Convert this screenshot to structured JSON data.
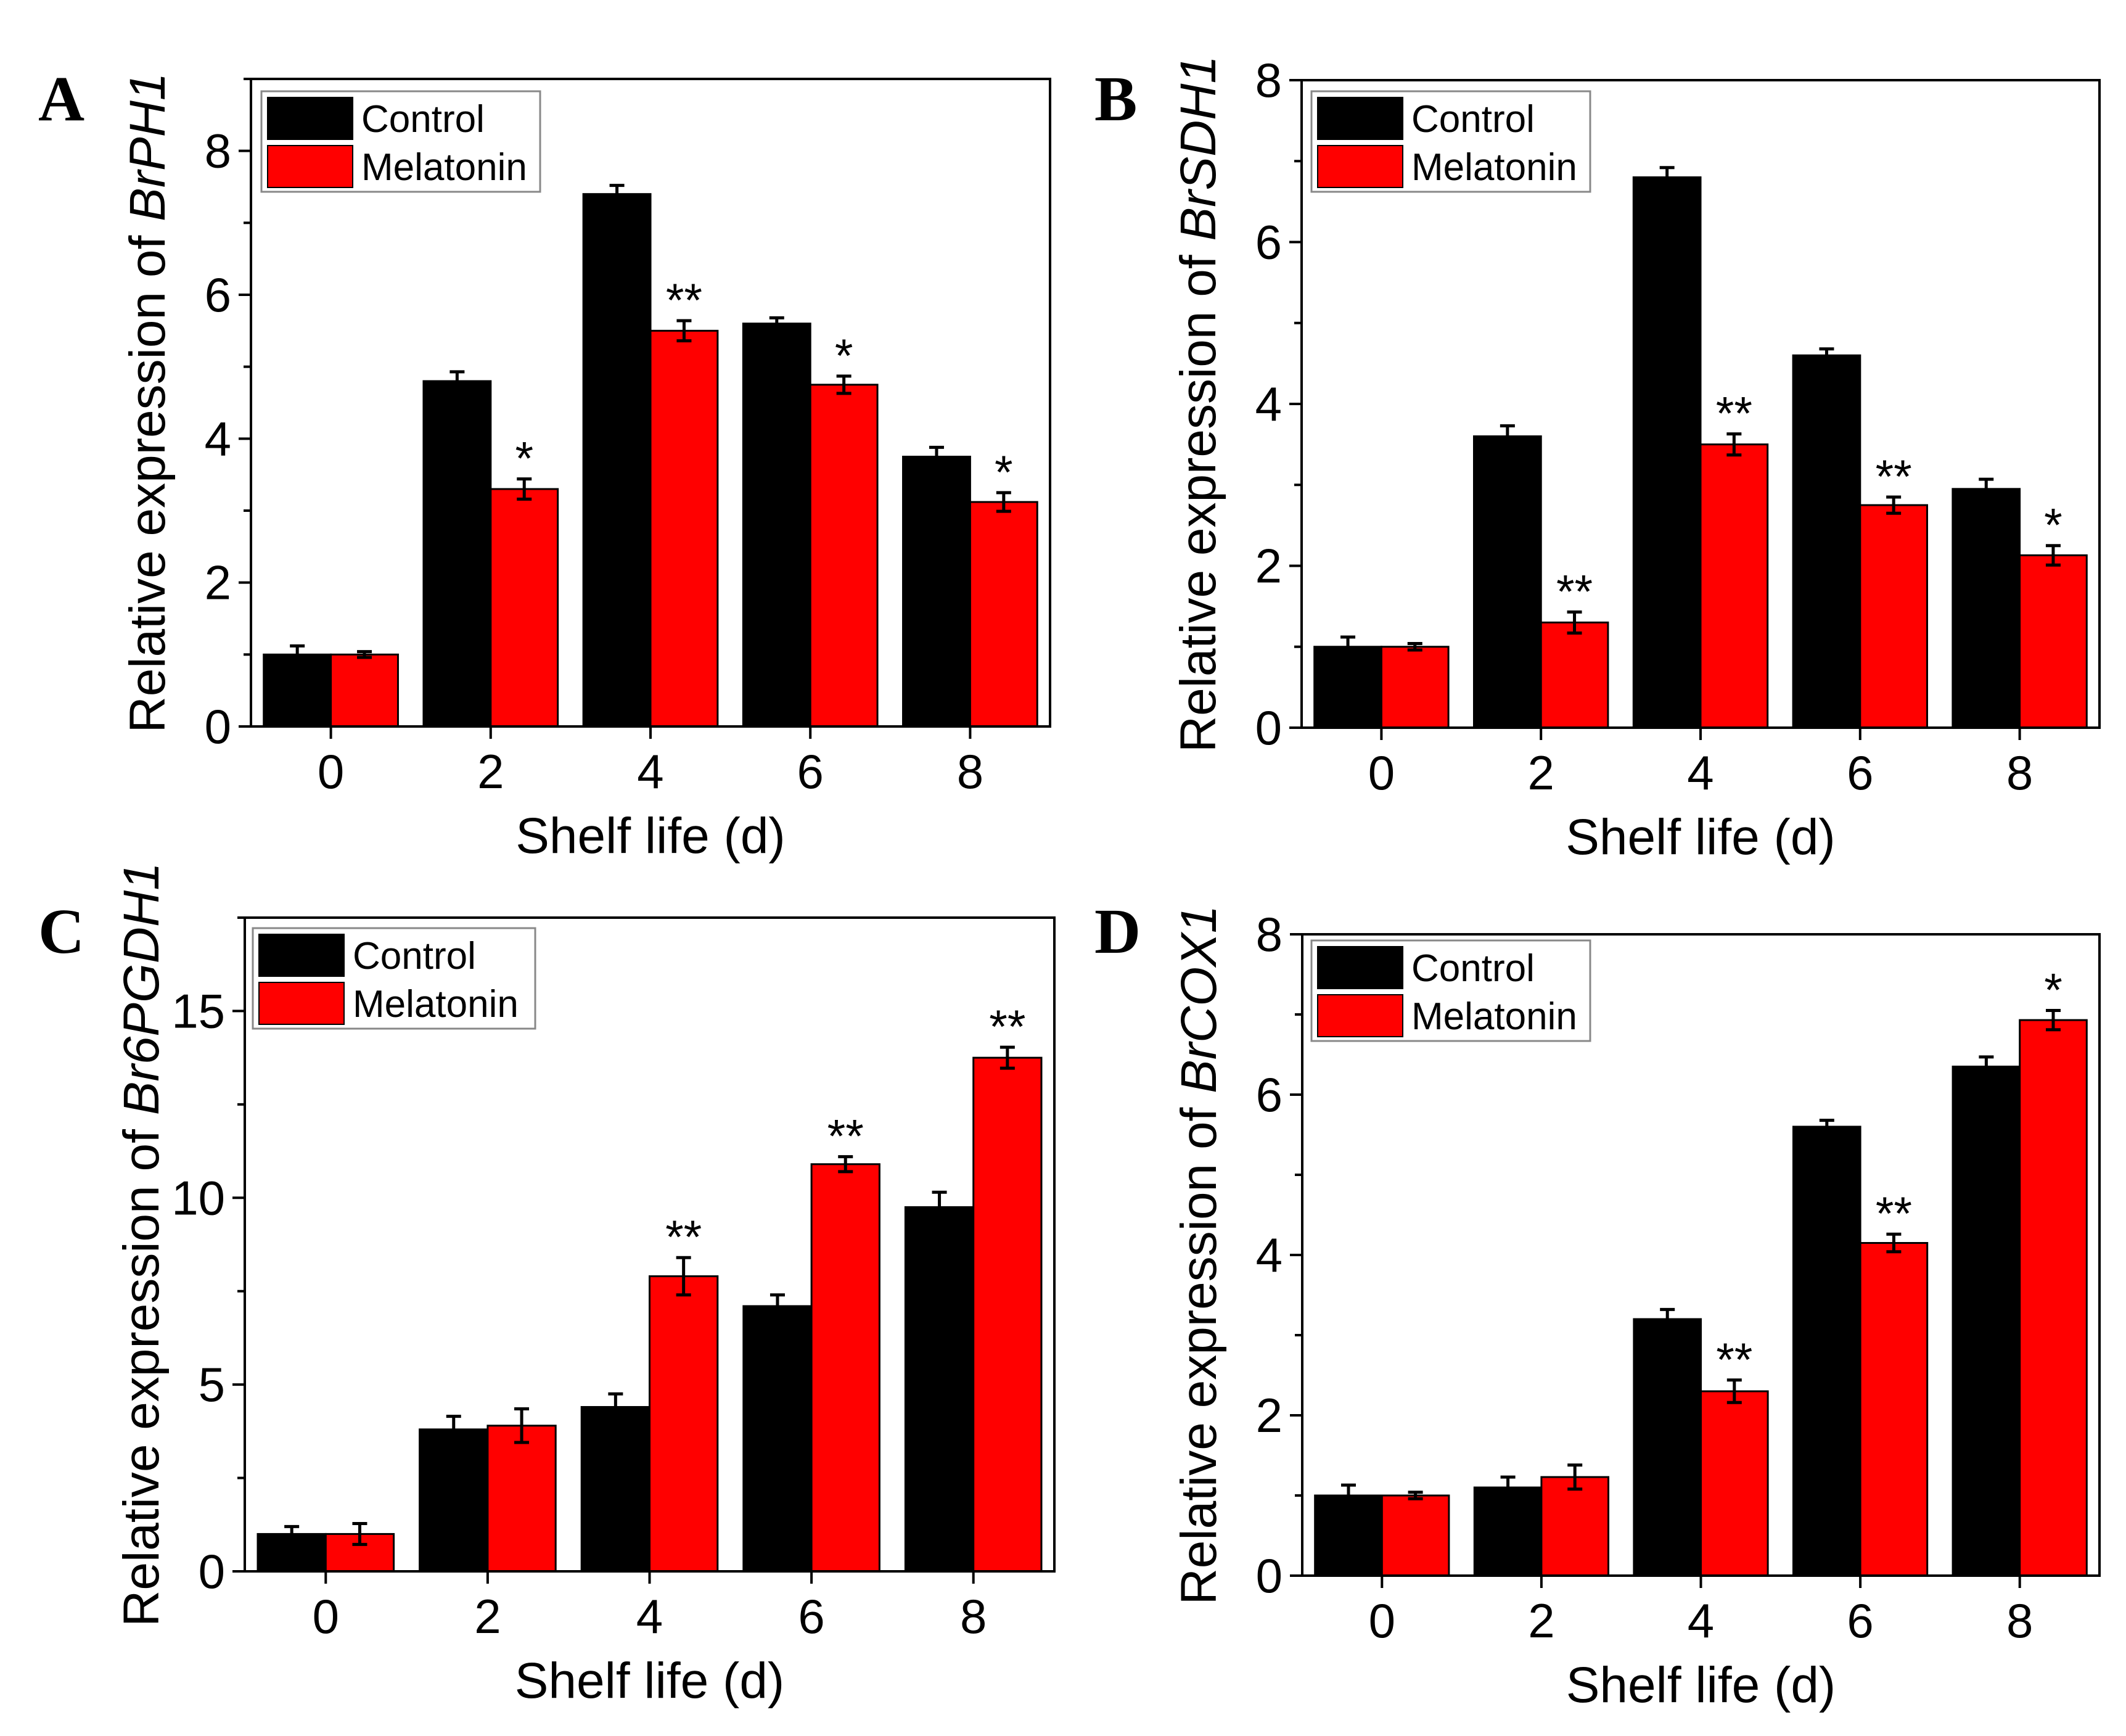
{
  "colors": {
    "control": "#000000",
    "melatonin": "#ff0000",
    "axis": "#000000"
  },
  "chart_data": [
    {
      "type": "bar",
      "panel": "A",
      "gene": "BrPH1",
      "ylabel_prefix": "Relative expression of ",
      "xlabel": "Shelf life (d)",
      "categories": [
        "0",
        "2",
        "4",
        "6",
        "8"
      ],
      "ylim": [
        0,
        9
      ],
      "yticks": [
        0,
        2,
        4,
        6,
        8
      ],
      "legend": [
        "Control",
        "Melatonin"
      ],
      "series": [
        {
          "name": "Control",
          "values": [
            1.0,
            4.8,
            7.4,
            5.6,
            3.75
          ],
          "errors": [
            0.12,
            0.13,
            0.12,
            0.08,
            0.13
          ]
        },
        {
          "name": "Melatonin",
          "values": [
            1.0,
            3.3,
            5.5,
            4.75,
            3.12
          ],
          "errors": [
            0.04,
            0.14,
            0.14,
            0.12,
            0.13
          ]
        }
      ],
      "significance": [
        "",
        "*",
        "**",
        "*",
        "*"
      ]
    },
    {
      "type": "bar",
      "panel": "B",
      "gene": "BrSDH1",
      "ylabel_prefix": "Relative expression of ",
      "xlabel": "Shelf life (d)",
      "categories": [
        "0",
        "2",
        "4",
        "6",
        "8"
      ],
      "ylim": [
        0,
        8
      ],
      "yticks": [
        0,
        2,
        4,
        6,
        8
      ],
      "legend": [
        "Control",
        "Melatonin"
      ],
      "series": [
        {
          "name": "Control",
          "values": [
            1.0,
            3.6,
            6.8,
            4.6,
            2.95
          ],
          "errors": [
            0.12,
            0.13,
            0.12,
            0.08,
            0.12
          ]
        },
        {
          "name": "Melatonin",
          "values": [
            1.0,
            1.3,
            3.5,
            2.75,
            2.13
          ],
          "errors": [
            0.04,
            0.13,
            0.13,
            0.1,
            0.12
          ]
        }
      ],
      "significance": [
        "",
        "**",
        "**",
        "**",
        "*"
      ]
    },
    {
      "type": "bar",
      "panel": "C",
      "gene": "Br6PGDH1",
      "ylabel_prefix": "Relative expression of ",
      "xlabel": "Shelf life (d)",
      "categories": [
        "0",
        "2",
        "4",
        "6",
        "8"
      ],
      "ylim": [
        0,
        17.5
      ],
      "yticks": [
        0,
        5,
        10,
        15
      ],
      "legend": [
        "Control",
        "Melatonin"
      ],
      "series": [
        {
          "name": "Control",
          "values": [
            1.0,
            3.8,
            4.4,
            7.1,
            9.75
          ],
          "errors": [
            0.2,
            0.35,
            0.35,
            0.3,
            0.4
          ]
        },
        {
          "name": "Melatonin",
          "values": [
            1.0,
            3.9,
            7.9,
            10.9,
            13.75
          ],
          "errors": [
            0.28,
            0.45,
            0.5,
            0.2,
            0.28
          ]
        }
      ],
      "significance": [
        "",
        "",
        "**",
        "**",
        "**"
      ]
    },
    {
      "type": "bar",
      "panel": "D",
      "gene": "BrCOX1",
      "ylabel_prefix": "Relative expression of ",
      "xlabel": "Shelf life (d)",
      "categories": [
        "0",
        "2",
        "4",
        "6",
        "8"
      ],
      "ylim": [
        0,
        8
      ],
      "yticks": [
        0,
        2,
        4,
        6,
        8
      ],
      "legend": [
        "Control",
        "Melatonin"
      ],
      "series": [
        {
          "name": "Control",
          "values": [
            1.0,
            1.1,
            3.2,
            5.6,
            6.35
          ],
          "errors": [
            0.13,
            0.13,
            0.12,
            0.08,
            0.12
          ]
        },
        {
          "name": "Melatonin",
          "values": [
            1.0,
            1.23,
            2.3,
            4.15,
            6.93
          ],
          "errors": [
            0.04,
            0.15,
            0.14,
            0.11,
            0.12
          ]
        }
      ],
      "significance": [
        "",
        "",
        "**",
        "**",
        "*"
      ]
    }
  ]
}
